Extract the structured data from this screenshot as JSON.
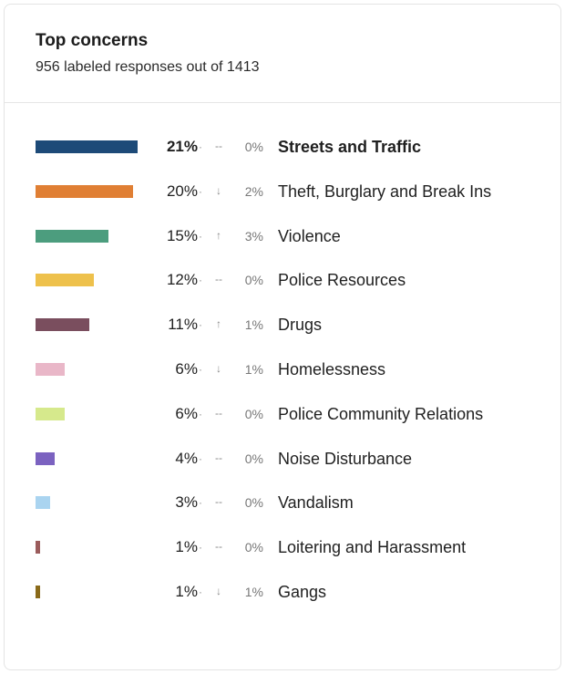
{
  "card": {
    "title": "Top concerns",
    "subtitle": "956 labeled responses out of 1413"
  },
  "chart_data": {
    "type": "bar",
    "orientation": "horizontal",
    "title": "Top concerns",
    "subtitle": "956 labeled responses out of 1413",
    "categories": [
      "Streets and Traffic",
      "Theft, Burglary and Break Ins",
      "Violence",
      "Police Resources",
      "Drugs",
      "Homelessness",
      "Police Community Relations",
      "Noise Disturbance",
      "Vandalism",
      "Loitering and Harassment",
      "Gangs"
    ],
    "values": [
      21,
      20,
      15,
      12,
      11,
      6,
      6,
      4,
      3,
      1,
      1
    ],
    "value_labels": [
      "21%",
      "20%",
      "15%",
      "12%",
      "11%",
      "6%",
      "6%",
      "4%",
      "3%",
      "1%",
      "1%"
    ],
    "trend": [
      "--",
      "↓",
      "↑",
      "--",
      "↑",
      "↓",
      "--",
      "--",
      "--",
      "--",
      "↓"
    ],
    "change": [
      "0%",
      "2%",
      "3%",
      "0%",
      "1%",
      "1%",
      "0%",
      "0%",
      "0%",
      "0%",
      "1%"
    ],
    "colors": [
      "#1d4a78",
      "#e07f34",
      "#4c9d7e",
      "#eec14c",
      "#7a4e5e",
      "#e9b7c8",
      "#d6e98c",
      "#7b62c0",
      "#aad4f0",
      "#9b5c5c",
      "#8a6a1a"
    ],
    "xlim": [
      0,
      21
    ],
    "legend": "none",
    "grid": false
  }
}
